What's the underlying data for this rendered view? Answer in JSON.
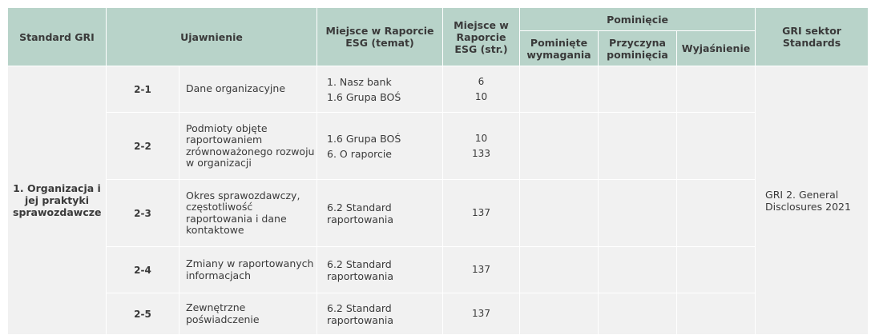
{
  "headers": {
    "standard_gri": "Standard GRI",
    "ujawnienie": "Ujawnienie",
    "miejsce_temat": "Miejsce w Raporcie ESG (temat)",
    "miejsce_str": "Miejsce w Raporcie ESG (str.)",
    "pominiecie": "Pominięcie",
    "pominiete_wymagania": "Pominięte wymagania",
    "przyczyna_pominiecia": "Przyczyna pominięcia",
    "wyjasnienie": "Wyjaśnienie",
    "gri_sektor": "GRI sektor Standards"
  },
  "group": {
    "standard": "1. Organizacja i jej praktyki sprawozdawcze",
    "sector": "GRI 2. General Disclosures 2021"
  },
  "rows": [
    {
      "code": "2-1",
      "description": "Dane organizacyjne",
      "places": [
        "1. Nasz bank",
        "1.6 Grupa BOŚ"
      ],
      "pages": [
        "6",
        "10"
      ]
    },
    {
      "code": "2-2",
      "description": "Podmioty objęte raportowaniem zrównoważonego rozwoju w organizacji",
      "places": [
        "1.6 Grupa BOŚ",
        "6. O raporcie"
      ],
      "pages": [
        "10",
        "133"
      ]
    },
    {
      "code": "2-3",
      "description": "Okres sprawozdawczy, częstotliwość raportowania i dane kontaktowe",
      "places": [
        "6.2 Standard raportowania"
      ],
      "pages": [
        "137"
      ]
    },
    {
      "code": "2-4",
      "description": "Zmiany w raportowanych informacjach",
      "places": [
        "6.2 Standard raportowania"
      ],
      "pages": [
        "137"
      ]
    },
    {
      "code": "2-5",
      "description": "Zewnętrzne poświadczenie",
      "places": [
        "6.2 Standard raportowania"
      ],
      "pages": [
        "137"
      ]
    }
  ]
}
